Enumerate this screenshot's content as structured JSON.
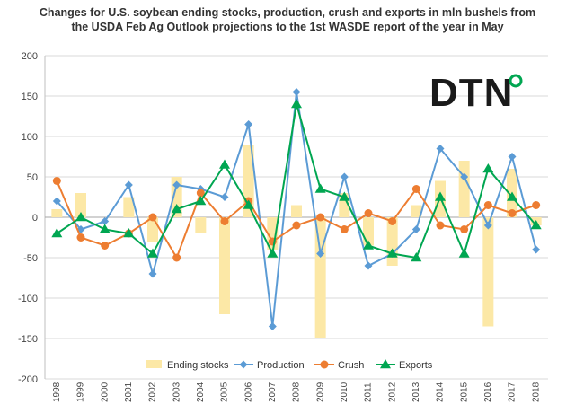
{
  "chart_data": {
    "type": "bar+line",
    "title": "Changes for U.S. soybean ending stocks, production, crush and exports in mln bushels from the USDA Feb Ag Outlook projections to the 1st WASDE report of the year in May",
    "xlabel": "",
    "ylabel": "",
    "ylim": [
      -200,
      200
    ],
    "yticks": [
      200,
      150,
      100,
      50,
      0,
      -50,
      -100,
      -150,
      -200
    ],
    "grid": true,
    "legend": "bottom",
    "categories": [
      "1998",
      "1999",
      "2000",
      "2001",
      "2002",
      "2003",
      "2004",
      "2005",
      "2006",
      "2007",
      "2008",
      "2009",
      "2010",
      "2011",
      "2012",
      "2013",
      "2014",
      "2015",
      "2016",
      "2017",
      "2018"
    ],
    "series": [
      {
        "name": "Ending stocks",
        "kind": "bar",
        "color": "#fce8a6",
        "values": [
          10,
          30,
          0,
          25,
          -30,
          50,
          -20,
          -120,
          90,
          -40,
          15,
          -150,
          30,
          -35,
          -60,
          15,
          45,
          70,
          -135,
          60,
          -10
        ]
      },
      {
        "name": "Production",
        "kind": "line",
        "marker": "diamond",
        "color": "#5b9bd5",
        "values": [
          20,
          -15,
          -5,
          40,
          -70,
          40,
          35,
          25,
          115,
          -135,
          155,
          -45,
          50,
          -60,
          -45,
          -15,
          85,
          50,
          -10,
          75,
          -40
        ]
      },
      {
        "name": "Crush",
        "kind": "line",
        "marker": "circle",
        "color": "#ed7d31",
        "values": [
          45,
          -25,
          -35,
          -20,
          0,
          -50,
          30,
          -5,
          20,
          -30,
          -10,
          0,
          -15,
          5,
          -5,
          35,
          -10,
          -15,
          15,
          5,
          15
        ]
      },
      {
        "name": "Exports",
        "kind": "line",
        "marker": "triangle",
        "color": "#00a651",
        "values": [
          -20,
          0,
          -15,
          -20,
          -45,
          10,
          20,
          65,
          15,
          -45,
          140,
          35,
          25,
          -35,
          -45,
          -50,
          25,
          -45,
          60,
          25,
          -10
        ]
      }
    ]
  },
  "logo": {
    "text": "DTN",
    "name": "dtn-logo"
  }
}
